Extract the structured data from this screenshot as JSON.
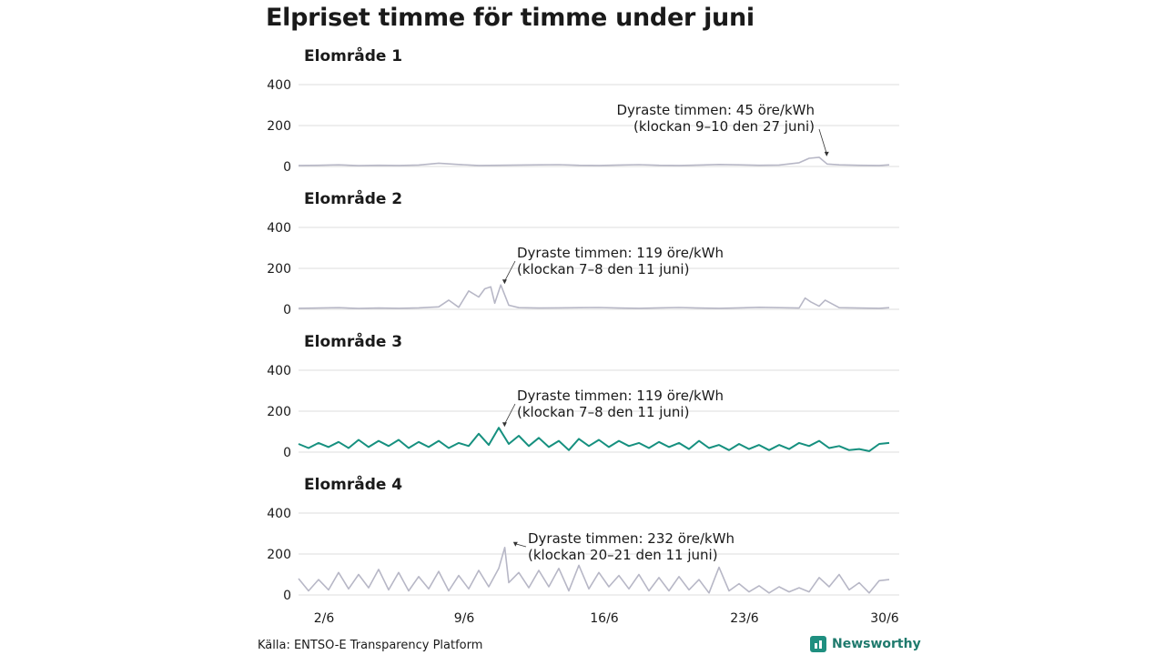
{
  "title": "Elpriset timme för timme under juni",
  "source": "Källa: ENTSO-E Transparency Platform",
  "brand": "Newsworthy",
  "colors": {
    "grey_series": "#b7b7c6",
    "highlight_series": "#16907f",
    "grid": "#dcdcdc"
  },
  "x_ticks": [
    {
      "day": 2,
      "label": "2/6"
    },
    {
      "day": 9,
      "label": "9/6"
    },
    {
      "day": 16,
      "label": "16/6"
    },
    {
      "day": 23,
      "label": "23/6"
    },
    {
      "day": 30,
      "label": "30/6"
    }
  ],
  "chart_data": [
    {
      "type": "line",
      "title": "Elområde 1",
      "ylim": [
        0,
        400
      ],
      "yticks": [
        "400",
        "200",
        "0"
      ],
      "grid": true,
      "highlight": false,
      "annotation_lines": [
        "Dyraste timmen: 45 öre/kWh",
        "(klockan 9–10 den 27 juni)"
      ],
      "peak": {
        "day": 27,
        "hour": 9,
        "value": 45
      },
      "series": [
        {
          "name": "",
          "x": [
            1,
            2,
            3,
            4,
            5,
            6,
            7,
            8,
            9,
            10,
            11,
            12,
            13,
            14,
            15,
            16,
            17,
            18,
            19,
            20,
            21,
            22,
            23,
            24,
            25,
            26,
            26.5,
            27,
            27.4,
            28,
            29,
            30,
            30.5
          ],
          "y": [
            5,
            6,
            8,
            4,
            6,
            5,
            7,
            16,
            10,
            5,
            6,
            7,
            8,
            9,
            6,
            5,
            7,
            9,
            6,
            5,
            7,
            10,
            8,
            6,
            7,
            18,
            40,
            45,
            12,
            8,
            6,
            5,
            8
          ]
        }
      ]
    },
    {
      "type": "line",
      "title": "Elområde 2",
      "ylim": [
        0,
        400
      ],
      "yticks": [
        "400",
        "200",
        "0"
      ],
      "grid": true,
      "highlight": false,
      "annotation_lines": [
        "Dyraste timmen: 119 öre/kWh",
        "(klockan 7–8 den 11 juni)"
      ],
      "peak": {
        "day": 11,
        "hour": 7,
        "value": 119
      },
      "series": [
        {
          "name": "",
          "x": [
            1,
            2,
            3,
            4,
            5,
            6,
            7,
            8,
            8.5,
            9,
            9.5,
            10,
            10.3,
            10.6,
            10.8,
            11.1,
            11.5,
            12,
            13,
            14,
            15,
            16,
            17,
            18,
            19,
            20,
            21,
            22,
            23,
            24,
            25,
            26,
            26.3,
            26.6,
            27,
            27.3,
            28,
            29,
            30,
            30.5
          ],
          "y": [
            5,
            6,
            8,
            4,
            6,
            5,
            7,
            12,
            45,
            10,
            90,
            60,
            100,
            110,
            30,
            119,
            20,
            8,
            6,
            7,
            8,
            9,
            6,
            5,
            7,
            9,
            6,
            5,
            7,
            10,
            8,
            6,
            55,
            35,
            15,
            45,
            8,
            6,
            5,
            8
          ]
        }
      ]
    },
    {
      "type": "line",
      "title": "Elområde 3",
      "ylim": [
        0,
        400
      ],
      "yticks": [
        "400",
        "200",
        "0"
      ],
      "grid": true,
      "highlight": true,
      "annotation_lines": [
        "Dyraste timmen: 119 öre/kWh",
        "(klockan 7–8 den 11 juni)"
      ],
      "peak": {
        "day": 11,
        "hour": 7,
        "value": 119
      },
      "series": [
        {
          "name": "",
          "x": [
            1,
            1.5,
            2,
            2.5,
            3,
            3.5,
            4,
            4.5,
            5,
            5.5,
            6,
            6.5,
            7,
            7.5,
            8,
            8.5,
            9,
            9.5,
            10,
            10.5,
            11,
            11.5,
            12,
            12.5,
            13,
            13.5,
            14,
            14.5,
            15,
            15.5,
            16,
            16.5,
            17,
            17.5,
            18,
            18.5,
            19,
            19.5,
            20,
            20.5,
            21,
            21.5,
            22,
            22.5,
            23,
            23.5,
            24,
            24.5,
            25,
            25.5,
            26,
            26.5,
            27,
            27.5,
            28,
            28.5,
            29,
            29.5,
            30,
            30.5
          ],
          "y": [
            40,
            20,
            45,
            25,
            50,
            20,
            60,
            25,
            55,
            30,
            60,
            20,
            50,
            25,
            55,
            20,
            45,
            30,
            90,
            35,
            119,
            40,
            80,
            30,
            70,
            25,
            55,
            10,
            65,
            30,
            60,
            25,
            55,
            30,
            45,
            20,
            50,
            25,
            45,
            15,
            55,
            20,
            35,
            10,
            40,
            15,
            35,
            10,
            35,
            15,
            45,
            30,
            55,
            20,
            30,
            10,
            15,
            5,
            40,
            45
          ]
        }
      ]
    },
    {
      "type": "line",
      "title": "Elområde 4",
      "ylim": [
        0,
        400
      ],
      "yticks": [
        "400",
        "200",
        "0"
      ],
      "grid": true,
      "highlight": false,
      "annotation_lines": [
        "Dyraste timmen: 232 öre/kWh",
        "(klockan 20–21 den 11 juni)"
      ],
      "peak": {
        "day": 11,
        "hour": 20,
        "value": 232
      },
      "series": [
        {
          "name": "",
          "x": [
            1,
            1.5,
            2,
            2.5,
            3,
            3.5,
            4,
            4.5,
            5,
            5.5,
            6,
            6.5,
            7,
            7.5,
            8,
            8.5,
            9,
            9.5,
            10,
            10.5,
            11,
            11.3,
            11.5,
            12,
            12.5,
            13,
            13.5,
            14,
            14.5,
            15,
            15.5,
            16,
            16.5,
            17,
            17.5,
            18,
            18.5,
            19,
            19.5,
            20,
            20.5,
            21,
            21.5,
            22,
            22.5,
            23,
            23.5,
            24,
            24.5,
            25,
            25.5,
            26,
            26.5,
            27,
            27.5,
            28,
            28.5,
            29,
            29.5,
            30,
            30.5
          ],
          "y": [
            80,
            20,
            75,
            25,
            110,
            30,
            100,
            35,
            125,
            25,
            110,
            20,
            90,
            30,
            115,
            20,
            95,
            30,
            120,
            40,
            130,
            232,
            60,
            110,
            35,
            120,
            40,
            130,
            20,
            145,
            30,
            110,
            40,
            95,
            30,
            100,
            20,
            85,
            20,
            90,
            25,
            75,
            10,
            135,
            20,
            55,
            15,
            45,
            10,
            40,
            15,
            35,
            15,
            85,
            40,
            100,
            25,
            60,
            10,
            70,
            75
          ]
        }
      ]
    }
  ]
}
